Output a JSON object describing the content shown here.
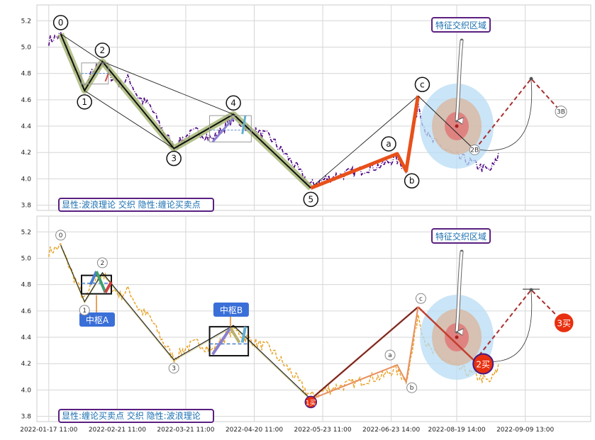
{
  "chart_data": [
    {
      "type": "line",
      "title": "",
      "ylim": [
        3.76,
        5.32
      ],
      "yticks": [
        "5.2",
        "5.0",
        "4.8",
        "4.6",
        "4.4",
        "4.2",
        "4.0",
        "3.8"
      ],
      "ytick_values": [
        5.2,
        5.0,
        4.8,
        4.6,
        4.4,
        4.2,
        4.0,
        3.8
      ],
      "grid": true,
      "legend_text": "显性:波浪理论 交织 隐性:缠论买卖点",
      "callout": "特征交织区域",
      "wave_points": [
        {
          "label": "0",
          "t": 4,
          "y": 5.1
        },
        {
          "label": "1",
          "t": 12,
          "y": 4.67
        },
        {
          "label": "2",
          "t": 18,
          "y": 4.89
        },
        {
          "label": "3",
          "t": 42,
          "y": 4.23
        },
        {
          "label": "4",
          "t": 62,
          "y": 4.49
        },
        {
          "label": "5",
          "t": 88,
          "y": 3.93
        },
        {
          "label": "a",
          "t": 117,
          "y": 4.19
        },
        {
          "label": "b",
          "t": 120,
          "y": 4.06
        },
        {
          "label": "c",
          "t": 124,
          "y": 4.63
        }
      ],
      "projection_labels": [
        "2B",
        "3B"
      ]
    },
    {
      "type": "line",
      "title": "",
      "ylim": [
        3.76,
        5.32
      ],
      "yticks": [
        "5.2",
        "5.0",
        "4.8",
        "4.6",
        "4.4",
        "4.2",
        "4.0",
        "3.8"
      ],
      "ytick_values": [
        5.2,
        5.0,
        4.8,
        4.6,
        4.4,
        4.2,
        4.0,
        3.8
      ],
      "grid": true,
      "legend_text": "显性:缠论买卖点 交织 隐性:波浪理论",
      "callout": "特征交织区域",
      "zones": [
        "中枢A",
        "中枢B"
      ],
      "signals": [
        "1买",
        "2买",
        "3买"
      ],
      "wave_labels": [
        "0",
        "1",
        "2",
        "3",
        "a",
        "b",
        "c"
      ]
    }
  ],
  "x_axis": {
    "tick_labels": [
      "2022-01-17 11:00",
      "2022-02-21 11:00",
      "2022-03-21 11:00",
      "2022-04-20 11:00",
      "2022-05-23 11:00",
      "2022-06-23 14:00",
      "2022-08-19 14:00",
      "2022-09-09 13:00"
    ]
  },
  "colors": {
    "price_top": "#4b0082",
    "price_bottom": "#e8a020",
    "wave_highlight": "#a8b878",
    "abc_wave": "#e8501a",
    "callout_border": "#5a2080",
    "legend_border": "#5a2080",
    "zone_label_bg": "#3a6fd8",
    "signal_red": "#e83010",
    "circle_blue": "#b8dcf4",
    "circle_tan": "#d8b8a0",
    "circle_red": "#e07878",
    "projection": "#a83030"
  }
}
